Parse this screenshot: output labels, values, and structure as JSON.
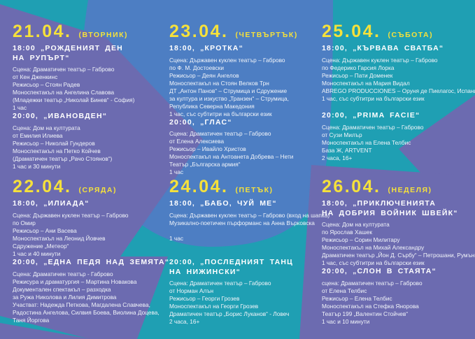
{
  "poster": {
    "colors": {
      "background_teal": "#1F9FB3",
      "circle_blue": "#4D7EC3",
      "ribbon_purple": "#6C6BB0",
      "accent_yellow": "#F5E13B",
      "text_white": "#FFFFFF"
    },
    "days": [
      {
        "date": "21.04.",
        "weekday": "(ВТОРНИК)",
        "position": "r1 c1",
        "events": [
          {
            "title_lines": [
              "18:00 „РОЖДЕНИЯТ ДЕН",
              "НА РУПЪРТ“"
            ],
            "lines": [
              "Сцена: Драматичен театър – Габрово",
              "от Кен Дженкинс",
              "Режисьор – Стоян Радев",
              "Моноспектакъл на Ангелина Славова",
              "(Младежки театър „Николай Бинев“ - София)",
              "1 час"
            ]
          },
          {
            "title_lines": [
              "20:00, „ИВАНОВДЕН“"
            ],
            "lines": [
              "Сцена: Дом на културата",
              "от Емилия Илиева",
              "Режисьор – Николай Гундеров",
              "Моноспектакъл на Петко Койчев",
              "(Драматичен театър „Рачо Стоянов“)",
              "1 час и 30 минути"
            ]
          }
        ]
      },
      {
        "date": "23.04.",
        "weekday": "(ЧЕТВЪРТЪК)",
        "position": "r1 c2",
        "events": [
          {
            "title_lines": [
              "18:00, „КРОТКА“"
            ],
            "lines": [
              "Сцена: Държавен куклен театър – Габрово",
              "по Ф. М. Достоевски",
              "Режисьор – Деян Ангелов",
              "Моноспектакъл на Стоян Велков Трн",
              "ДТ „Антон Панов“ – Струмица и  Сдружение",
              "за култура и изкуство „Транзен“ – Струмица,",
              "Република Северна Македония",
              "1 час, със субтитри на български език"
            ]
          },
          {
            "title_lines": [
              "20:00, „ГЛАС“"
            ],
            "lines": [
              "Сцена: Драматичен театър – Габрово",
              "от Елена Алексиева",
              "Режисьор – Ивайло Христов",
              "Моноспектакъл на Антоанета Добрева – Нети",
              "Театър „Българска армия“",
              "1 час"
            ]
          }
        ]
      },
      {
        "date": "25.04.",
        "weekday": "(СЪБОТА)",
        "position": "r1 c3",
        "events": [
          {
            "title_lines": [
              "18:00, „КЪРВАВА СВАТБА“"
            ],
            "lines": [
              "Сцена: Държавен куклен театър – Габрово",
              "по Федерико Гарсия Лорка",
              "Режисьор – Пати Доменек",
              "Моноспектакъл на Мария Видал",
              "ABREGO PRODUCCIONES – Оруня де Пиелагос, Испания",
              "1 час, със субтитри на български език"
            ]
          },
          {
            "title_lines": [
              "20:00, „PRIMA FACIE“"
            ],
            "lines": [
              "Сцена: Драматичен театър – Габрово",
              "от Сузи Милър",
              "Моноспектакъл на Елена Телбис",
              "База Ж, ARTVENT",
              "2 часа, 16+"
            ]
          }
        ]
      },
      {
        "date": "22.04.",
        "weekday": "(СРЯДА)",
        "position": "r2 c1",
        "events": [
          {
            "title_lines": [
              "18:00, „ИЛИАДА“"
            ],
            "lines": [
              "Сцена: Държавен куклен театър – Габрово",
              "по Омир",
              "Режисьор – Ани Васева",
              "Моноспектакъл на Леонид Йовчев",
              "Сдружение „Метеор“",
              "1 час и 40 минути"
            ]
          },
          {
            "title_lines": [
              "20:00, „ЕДНА ПЕДЯ НАД ЗЕМЯТА“"
            ],
            "lines": [
              "Сцена: Драматичен театър - Габрово",
              "Режисура и драматургия – Мартина Новакова",
              "Документален спектакъл – разходка",
              "за Ружа Николова и Лилия Димитрова",
              "Участват: Надежда Петкова, Магдалена Славчева,",
              "Радостина Ангелова, Силвия Боева, Виолина Доцева,",
              "Таня Йоргова"
            ]
          }
        ]
      },
      {
        "date": "24.04.",
        "weekday": "(ПЕТЪК)",
        "position": "r2 c2",
        "events": [
          {
            "title_lines": [
              "18:00, „БАБО, ЧУЙ МЕ“"
            ],
            "lines": [
              "Сцена: Държавен куклен театър – Габрово (вход на шапка)",
              "Музикално-поетичен пърформанс на Анна Върковска",
              "",
              "1 час"
            ]
          },
          {
            "title_lines": [
              "20:00, „ПОСЛЕДНИЯТ ТАНЦ",
              "НА НИЖИНСКИ“"
            ],
            "lines": [
              "Сцена: Драматичен театър – Габрово",
              "от Норман Алън",
              "Режисьор – Георги Грозев",
              "Моноспектакъл на Георги Грозев",
              "Драматичен театър „Борис Луканов“ - Ловеч",
              "2 часа, 16+"
            ]
          }
        ]
      },
      {
        "date": "26.04.",
        "weekday": "(НЕДЕЛЯ)",
        "position": "r2 c3",
        "events": [
          {
            "title_lines": [
              "18:00, „ПРИКЛЮЧЕНИЯТА",
              "НА ДОБРИЯ ВОЙНИК ШВЕЙК“"
            ],
            "lines": [
              "Сцена: Дом на културата",
              "по Ярослав Хашек",
              "Режисьор – Сорин Милитару",
              "Моноспектакъл на Михай Александру",
              "Драматичен театър „Йон Д. Сърбу“ – Петрошани, Румъния",
              "1 час, със субтитри на български език"
            ]
          },
          {
            "title_lines": [
              "20:00, „СЛОН В СТАЯТА“"
            ],
            "lines": [
              "сцена: Драматичен театър – Габрово",
              "от Елена Телбис",
              "Режисьор – Елена Телбис",
              "Моноспектакъл на Стефка Янорова",
              "Театър 199 „Валентин Стойчев“",
              "1 час и 10 минути"
            ]
          }
        ]
      }
    ]
  }
}
